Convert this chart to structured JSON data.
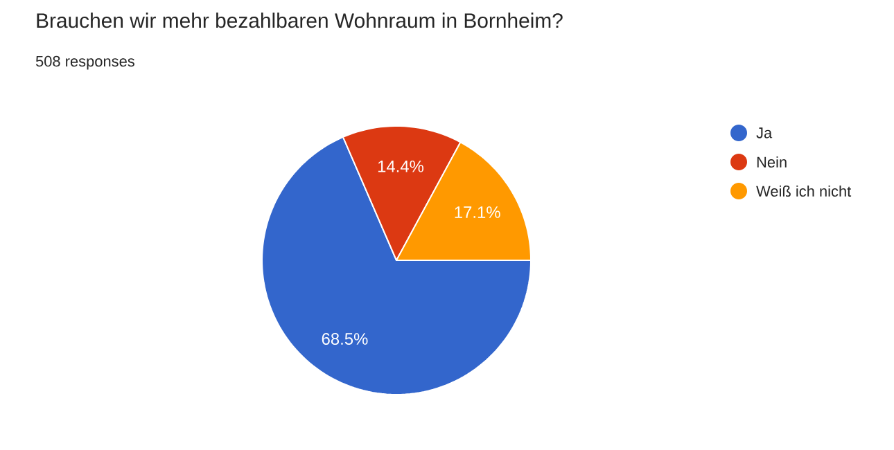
{
  "chart_data": {
    "type": "pie",
    "title": "Brauchen wir mehr bezahlbaren Wohnraum in Bornheim?",
    "subtitle": "508 responses",
    "categories": [
      "Ja",
      "Nein",
      "Weiß ich nicht"
    ],
    "values": [
      68.5,
      14.4,
      17.1
    ],
    "colors": [
      "#3366cc",
      "#dc3912",
      "#ff9900"
    ],
    "value_labels": [
      "68.5%",
      "14.4%",
      "17.1%"
    ],
    "legend": "right"
  }
}
